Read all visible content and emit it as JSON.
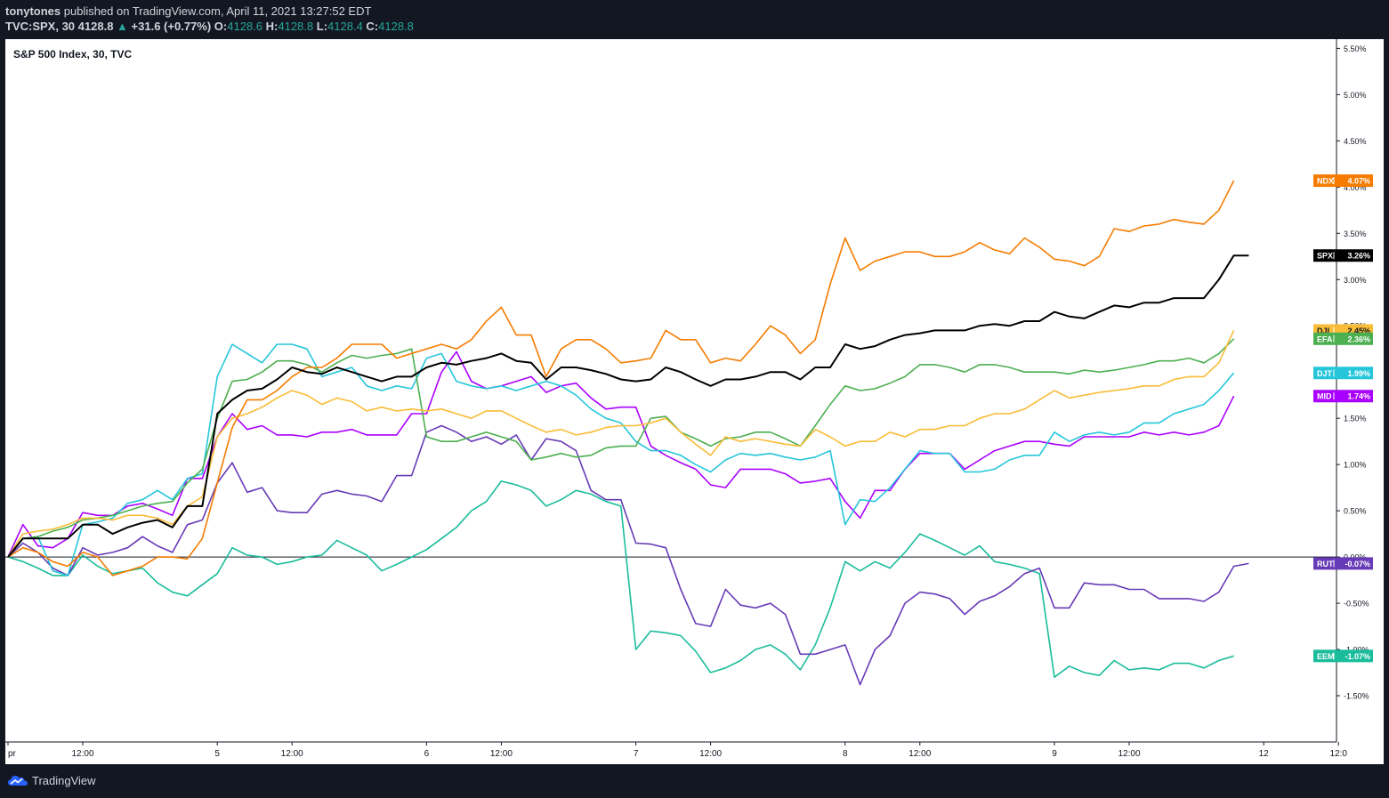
{
  "header": {
    "author": "tonytones",
    "published": " published on TradingView.com, April 11, 2021 13:27:52 EDT",
    "symbol": "TVC:SPX, 30",
    "last": "4128.8",
    "arrow": "▲",
    "change": "+31.6 (+0.77%)",
    "o_label": "O:",
    "o_value": "4128.6",
    "h_label": "H:",
    "h_value": "4128.8",
    "l_label": "L:",
    "l_value": "4128.4",
    "c_label": "C:",
    "c_value": "4128.8"
  },
  "footer": {
    "brand": "TradingView"
  },
  "chart_data": {
    "type": "line",
    "title": "S&P 500 Index, 30, TVC",
    "ylim": [
      -2.0,
      5.6
    ],
    "y_ticks": [
      5.5,
      5.0,
      4.5,
      4.0,
      3.5,
      3.0,
      2.5,
      2.0,
      1.5,
      1.0,
      0.5,
      0.0,
      -0.5,
      -1.0,
      -1.5
    ],
    "y_tick_labels": [
      "5.50%",
      "5.00%",
      "4.50%",
      "4.00%",
      "3.50%",
      "3.00%",
      "2.50%",
      "2.00%",
      "1.50%",
      "1.00%",
      "0.50%",
      "0.00%",
      "-0.50%",
      "-1.00%",
      "-1.50%"
    ],
    "x_ticks": [
      {
        "i": 0,
        "label": "pr"
      },
      {
        "i": 5,
        "label": "12:00"
      },
      {
        "i": 14,
        "label": "5"
      },
      {
        "i": 19,
        "label": "12:00"
      },
      {
        "i": 28,
        "label": "6"
      },
      {
        "i": 33,
        "label": "12:00"
      },
      {
        "i": 42,
        "label": "7"
      },
      {
        "i": 47,
        "label": "12:00"
      },
      {
        "i": 56,
        "label": "8"
      },
      {
        "i": 61,
        "label": "12:00"
      },
      {
        "i": 70,
        "label": "9"
      },
      {
        "i": 75,
        "label": "12:00"
      },
      {
        "i": 84,
        "label": "12"
      },
      {
        "i": 89,
        "label": "12:0"
      }
    ],
    "baseline": 0,
    "series": [
      {
        "name": "NDX",
        "label": "4.07%",
        "color": "#f57c00",
        "values": [
          0,
          0.1,
          0.05,
          -0.05,
          -0.1,
          0.05,
          0,
          -0.2,
          -0.15,
          -0.1,
          0,
          0,
          -0.02,
          0.2,
          0.8,
          1.4,
          1.7,
          1.7,
          1.8,
          1.95,
          2.05,
          2.05,
          2.15,
          2.3,
          2.3,
          2.3,
          2.15,
          2.2,
          2.25,
          2.3,
          2.25,
          2.35,
          2.55,
          2.7,
          2.4,
          2.4,
          1.95,
          2.25,
          2.35,
          2.35,
          2.25,
          2.1,
          2.12,
          2.15,
          2.45,
          2.35,
          2.35,
          2.1,
          2.15,
          2.12,
          2.3,
          2.5,
          2.4,
          2.2,
          2.35,
          2.95,
          3.45,
          3.1,
          3.2,
          3.25,
          3.3,
          3.3,
          3.25,
          3.25,
          3.3,
          3.4,
          3.32,
          3.28,
          3.45,
          3.35,
          3.22,
          3.2,
          3.15,
          3.25,
          3.55,
          3.52,
          3.58,
          3.6,
          3.65,
          3.62,
          3.6,
          3.75,
          4.07
        ]
      },
      {
        "name": "SPX",
        "label": "3.26%",
        "color": "#000000",
        "values": [
          0,
          0.2,
          0.2,
          0.2,
          0.2,
          0.35,
          0.35,
          0.25,
          0.32,
          0.37,
          0.4,
          0.32,
          0.55,
          0.55,
          1.55,
          1.7,
          1.8,
          1.82,
          1.92,
          2.05,
          2.0,
          1.98,
          2.05,
          2.0,
          1.95,
          1.9,
          1.95,
          1.95,
          2.05,
          2.1,
          2.08,
          2.12,
          2.15,
          2.2,
          2.12,
          2.1,
          1.92,
          2.05,
          2.05,
          2.02,
          1.98,
          1.92,
          1.9,
          1.92,
          2.05,
          2.0,
          1.92,
          1.85,
          1.92,
          1.92,
          1.95,
          2.0,
          2.0,
          1.92,
          2.05,
          2.05,
          2.3,
          2.25,
          2.28,
          2.35,
          2.4,
          2.42,
          2.45,
          2.45,
          2.45,
          2.5,
          2.52,
          2.5,
          2.55,
          2.55,
          2.65,
          2.6,
          2.58,
          2.65,
          2.72,
          2.7,
          2.75,
          2.75,
          2.8,
          2.8,
          2.8,
          3.0,
          3.26,
          3.26
        ]
      },
      {
        "name": "DJI",
        "label": "2.45%",
        "color": "#f9bc36",
        "values": [
          0,
          0.25,
          0.28,
          0.3,
          0.35,
          0.42,
          0.42,
          0.4,
          0.45,
          0.45,
          0.42,
          0.35,
          0.55,
          0.65,
          1.3,
          1.5,
          1.55,
          1.62,
          1.72,
          1.8,
          1.75,
          1.65,
          1.72,
          1.68,
          1.58,
          1.62,
          1.58,
          1.6,
          1.58,
          1.6,
          1.55,
          1.5,
          1.58,
          1.58,
          1.5,
          1.42,
          1.35,
          1.38,
          1.32,
          1.35,
          1.4,
          1.42,
          1.42,
          1.45,
          1.5,
          1.35,
          1.22,
          1.1,
          1.3,
          1.25,
          1.28,
          1.25,
          1.22,
          1.2,
          1.38,
          1.3,
          1.2,
          1.25,
          1.25,
          1.35,
          1.3,
          1.38,
          1.38,
          1.42,
          1.42,
          1.5,
          1.55,
          1.55,
          1.6,
          1.7,
          1.8,
          1.72,
          1.75,
          1.78,
          1.8,
          1.82,
          1.85,
          1.85,
          1.92,
          1.95,
          1.95,
          2.1,
          2.45
        ]
      },
      {
        "name": "EFA",
        "label": "2.36%",
        "color": "#4caf50",
        "values": [
          0,
          0.2,
          0.22,
          0.28,
          0.32,
          0.4,
          0.42,
          0.45,
          0.5,
          0.55,
          0.58,
          0.6,
          0.8,
          0.95,
          1.5,
          1.9,
          1.92,
          2.0,
          2.12,
          2.12,
          2.08,
          2.0,
          2.1,
          2.18,
          2.15,
          2.18,
          2.2,
          2.25,
          1.3,
          1.25,
          1.25,
          1.3,
          1.35,
          1.3,
          1.25,
          1.05,
          1.08,
          1.12,
          1.08,
          1.1,
          1.18,
          1.2,
          1.2,
          1.5,
          1.52,
          1.35,
          1.28,
          1.2,
          1.28,
          1.3,
          1.35,
          1.35,
          1.28,
          1.2,
          1.42,
          1.65,
          1.85,
          1.8,
          1.82,
          1.88,
          1.95,
          2.08,
          2.08,
          2.05,
          2.0,
          2.08,
          2.08,
          2.05,
          2.0,
          2.0,
          2.0,
          1.98,
          2.02,
          2.0,
          2.02,
          2.05,
          2.08,
          2.12,
          2.12,
          2.15,
          2.1,
          2.2,
          2.36
        ]
      },
      {
        "name": "DJT",
        "label": "1.99%",
        "color": "#26c6da",
        "values": [
          0,
          0.2,
          0.22,
          -0.15,
          -0.2,
          0.35,
          0.38,
          0.42,
          0.58,
          0.62,
          0.72,
          0.62,
          0.85,
          0.9,
          1.95,
          2.3,
          2.2,
          2.1,
          2.3,
          2.3,
          2.25,
          1.95,
          2.0,
          2.05,
          1.85,
          1.8,
          1.85,
          1.82,
          2.15,
          2.2,
          1.9,
          1.85,
          1.82,
          1.85,
          1.8,
          1.85,
          1.9,
          1.85,
          1.75,
          1.6,
          1.5,
          1.45,
          1.25,
          1.15,
          1.15,
          1.1,
          1.0,
          0.92,
          1.05,
          1.12,
          1.1,
          1.12,
          1.08,
          1.05,
          1.08,
          1.15,
          0.35,
          0.62,
          0.6,
          0.75,
          0.95,
          1.15,
          1.12,
          1.12,
          0.92,
          0.92,
          0.95,
          1.05,
          1.1,
          1.1,
          1.35,
          1.25,
          1.32,
          1.35,
          1.32,
          1.35,
          1.45,
          1.45,
          1.55,
          1.6,
          1.65,
          1.8,
          1.99
        ]
      },
      {
        "name": "MID",
        "label": "1.74%",
        "color": "#aa00ff",
        "values": [
          0,
          0.35,
          0.12,
          0.1,
          0.2,
          0.48,
          0.45,
          0.45,
          0.55,
          0.58,
          0.52,
          0.45,
          0.85,
          0.85,
          1.3,
          1.55,
          1.38,
          1.42,
          1.32,
          1.32,
          1.3,
          1.35,
          1.35,
          1.38,
          1.32,
          1.32,
          1.32,
          1.55,
          1.55,
          2.0,
          2.22,
          1.9,
          1.82,
          1.85,
          1.9,
          1.95,
          1.78,
          1.85,
          1.88,
          1.72,
          1.6,
          1.62,
          1.62,
          1.2,
          1.1,
          1.02,
          0.95,
          0.78,
          0.75,
          0.95,
          0.95,
          0.95,
          0.9,
          0.8,
          0.82,
          0.85,
          0.6,
          0.42,
          0.72,
          0.72,
          0.95,
          1.12,
          1.12,
          1.12,
          0.95,
          1.05,
          1.15,
          1.2,
          1.25,
          1.25,
          1.22,
          1.2,
          1.3,
          1.3,
          1.3,
          1.3,
          1.35,
          1.32,
          1.35,
          1.32,
          1.35,
          1.42,
          1.74
        ]
      },
      {
        "name": "RUT",
        "label": "-0.07%",
        "color": "#673ab7",
        "values": [
          0,
          0.15,
          0.05,
          -0.12,
          -0.2,
          0.1,
          0.02,
          0.05,
          0.1,
          0.22,
          0.12,
          0.05,
          0.35,
          0.4,
          0.8,
          1.02,
          0.7,
          0.75,
          0.5,
          0.48,
          0.48,
          0.68,
          0.72,
          0.68,
          0.66,
          0.6,
          0.88,
          0.88,
          1.35,
          1.42,
          1.35,
          1.25,
          1.3,
          1.22,
          1.32,
          1.05,
          1.28,
          1.25,
          1.15,
          0.72,
          0.62,
          0.62,
          0.15,
          0.14,
          0.1,
          -0.35,
          -0.72,
          -0.75,
          -0.35,
          -0.52,
          -0.55,
          -0.5,
          -0.62,
          -1.05,
          -1.05,
          -1.0,
          -0.95,
          -1.38,
          -1.0,
          -0.85,
          -0.5,
          -0.38,
          -0.4,
          -0.45,
          -0.62,
          -0.48,
          -0.42,
          -0.32,
          -0.18,
          -0.12,
          -0.55,
          -0.55,
          -0.28,
          -0.3,
          -0.3,
          -0.35,
          -0.35,
          -0.45,
          -0.45,
          -0.45,
          -0.48,
          -0.38,
          -0.1,
          -0.07
        ]
      },
      {
        "name": "EEM",
        "label": "-1.07%",
        "color": "#1abc9c",
        "values": [
          0,
          -0.05,
          -0.12,
          -0.2,
          -0.2,
          0.02,
          -0.1,
          -0.18,
          -0.15,
          -0.12,
          -0.28,
          -0.38,
          -0.42,
          -0.3,
          -0.18,
          0.1,
          0.02,
          0.0,
          -0.08,
          -0.05,
          0.0,
          0.02,
          0.18,
          0.1,
          0.02,
          -0.15,
          -0.08,
          0.0,
          0.08,
          0.2,
          0.32,
          0.5,
          0.6,
          0.82,
          0.78,
          0.72,
          0.55,
          0.62,
          0.72,
          0.68,
          0.6,
          0.55,
          -1.0,
          -0.8,
          -0.82,
          -0.85,
          -1.02,
          -1.25,
          -1.2,
          -1.12,
          -1.0,
          -0.95,
          -1.05,
          -1.22,
          -0.95,
          -0.55,
          -0.05,
          -0.15,
          -0.05,
          -0.12,
          0.05,
          0.25,
          0.18,
          0.1,
          0.02,
          0.12,
          -0.05,
          -0.08,
          -0.12,
          -0.18,
          -1.3,
          -1.18,
          -1.25,
          -1.28,
          -1.12,
          -1.22,
          -1.2,
          -1.22,
          -1.15,
          -1.15,
          -1.2,
          -1.12,
          -1.07
        ]
      }
    ]
  }
}
